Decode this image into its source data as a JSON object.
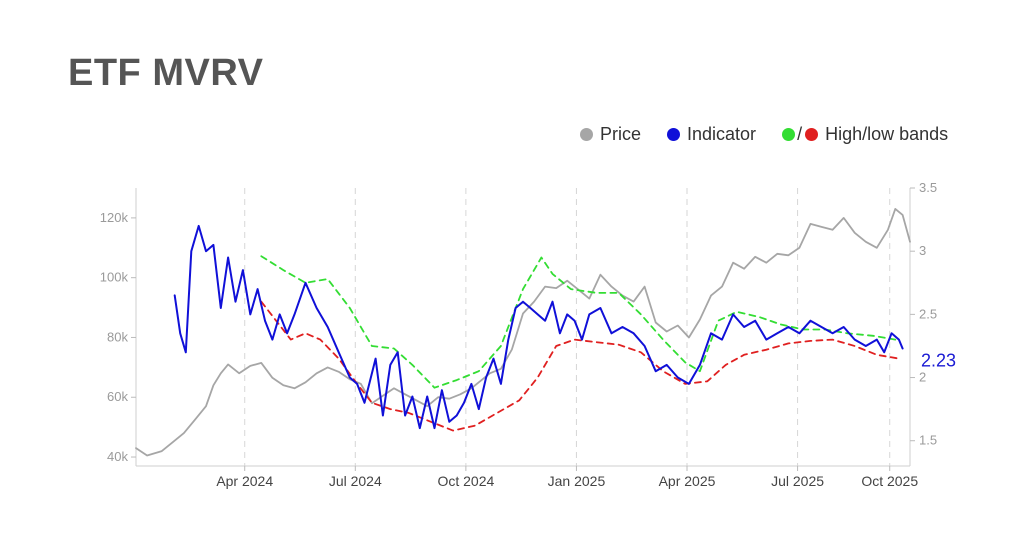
{
  "title": "ETF MVRV",
  "legend": {
    "price": "Price",
    "indicator": "Indicator",
    "bands": "High/low bands",
    "slash": "/"
  },
  "colors": {
    "price": "#a6a6a6",
    "indicator": "#1010d8",
    "high_band": "#33dd33",
    "low_band": "#e02020"
  },
  "chart_data": {
    "type": "line",
    "x_axis": {
      "range": [
        0,
        20
      ],
      "ticks": [
        {
          "x": 2.95,
          "label": "Apr 2024"
        },
        {
          "x": 5.95,
          "label": "Jul 2024"
        },
        {
          "x": 8.95,
          "label": "Oct 2024"
        },
        {
          "x": 11.95,
          "label": "Jan 2025"
        },
        {
          "x": 14.95,
          "label": "Apr 2025"
        },
        {
          "x": 17.95,
          "label": "Jul 2025"
        },
        {
          "x": 20.45,
          "label": "Oct 2025"
        }
      ]
    },
    "y_left": {
      "range": [
        37000,
        130000
      ],
      "ticks": [
        {
          "v": 40000,
          "label": "40k"
        },
        {
          "v": 60000,
          "label": "60k"
        },
        {
          "v": 80000,
          "label": "80k"
        },
        {
          "v": 100000,
          "label": "100k"
        },
        {
          "v": 120000,
          "label": "120k"
        }
      ]
    },
    "y_right": {
      "range": [
        1.3,
        3.5
      ],
      "ticks": [
        {
          "v": 1.5,
          "label": "1.5"
        },
        {
          "v": 2,
          "label": "2"
        },
        {
          "v": 2.5,
          "label": "2.5"
        },
        {
          "v": 3,
          "label": "3"
        },
        {
          "v": 3.5,
          "label": "3.5"
        }
      ]
    },
    "last_value_label": "2.23",
    "series": [
      {
        "name": "Price",
        "axis": "left",
        "points": [
          [
            0,
            43000
          ],
          [
            0.3,
            40500
          ],
          [
            0.7,
            42000
          ],
          [
            1.0,
            45000
          ],
          [
            1.3,
            48000
          ],
          [
            1.6,
            52500
          ],
          [
            1.9,
            57000
          ],
          [
            2.1,
            64000
          ],
          [
            2.3,
            68000
          ],
          [
            2.5,
            71000
          ],
          [
            2.8,
            68000
          ],
          [
            3.1,
            70500
          ],
          [
            3.4,
            71500
          ],
          [
            3.7,
            66500
          ],
          [
            4.0,
            64000
          ],
          [
            4.3,
            63000
          ],
          [
            4.6,
            65000
          ],
          [
            4.9,
            68000
          ],
          [
            5.2,
            70000
          ],
          [
            5.5,
            68500
          ],
          [
            5.8,
            66000
          ],
          [
            6.1,
            64500
          ],
          [
            6.4,
            58000
          ],
          [
            6.7,
            60500
          ],
          [
            7.0,
            63000
          ],
          [
            7.3,
            61000
          ],
          [
            7.6,
            59000
          ],
          [
            7.9,
            57000
          ],
          [
            8.2,
            60000
          ],
          [
            8.5,
            59500
          ],
          [
            8.8,
            61000
          ],
          [
            9.1,
            63000
          ],
          [
            9.4,
            66000
          ],
          [
            9.6,
            68000
          ],
          [
            9.9,
            69500
          ],
          [
            10.2,
            76000
          ],
          [
            10.5,
            88000
          ],
          [
            10.8,
            92000
          ],
          [
            11.1,
            97000
          ],
          [
            11.4,
            96500
          ],
          [
            11.7,
            99000
          ],
          [
            12.0,
            96000
          ],
          [
            12.3,
            93000
          ],
          [
            12.6,
            101000
          ],
          [
            12.9,
            97000
          ],
          [
            13.2,
            94000
          ],
          [
            13.5,
            92000
          ],
          [
            13.8,
            97000
          ],
          [
            14.1,
            85000
          ],
          [
            14.4,
            82000
          ],
          [
            14.7,
            84000
          ],
          [
            15.0,
            80000
          ],
          [
            15.3,
            86000
          ],
          [
            15.6,
            94000
          ],
          [
            15.9,
            97000
          ],
          [
            16.2,
            105000
          ],
          [
            16.5,
            103000
          ],
          [
            16.8,
            107000
          ],
          [
            17.1,
            105000
          ],
          [
            17.4,
            108000
          ],
          [
            17.7,
            107500
          ],
          [
            18.0,
            110000
          ],
          [
            18.3,
            118000
          ],
          [
            18.6,
            117000
          ],
          [
            18.9,
            116000
          ],
          [
            19.2,
            120000
          ],
          [
            19.5,
            115000
          ],
          [
            19.8,
            112000
          ],
          [
            20.1,
            110000
          ],
          [
            20.4,
            116000
          ],
          [
            20.6,
            123000
          ],
          [
            20.8,
            121000
          ],
          [
            21.0,
            112000
          ]
        ]
      },
      {
        "name": "Indicator",
        "axis": "right",
        "points": [
          [
            1.05,
            2.65
          ],
          [
            1.2,
            2.35
          ],
          [
            1.35,
            2.2
          ],
          [
            1.5,
            3.0
          ],
          [
            1.7,
            3.2
          ],
          [
            1.9,
            3.0
          ],
          [
            2.1,
            3.05
          ],
          [
            2.3,
            2.55
          ],
          [
            2.5,
            2.95
          ],
          [
            2.7,
            2.6
          ],
          [
            2.9,
            2.85
          ],
          [
            3.1,
            2.5
          ],
          [
            3.3,
            2.7
          ],
          [
            3.5,
            2.45
          ],
          [
            3.7,
            2.3
          ],
          [
            3.9,
            2.5
          ],
          [
            4.1,
            2.35
          ],
          [
            4.3,
            2.5
          ],
          [
            4.6,
            2.75
          ],
          [
            4.9,
            2.55
          ],
          [
            5.2,
            2.4
          ],
          [
            5.5,
            2.2
          ],
          [
            5.8,
            2.0
          ],
          [
            6.0,
            1.95
          ],
          [
            6.2,
            1.8
          ],
          [
            6.5,
            2.15
          ],
          [
            6.7,
            1.7
          ],
          [
            6.9,
            2.1
          ],
          [
            7.1,
            2.2
          ],
          [
            7.3,
            1.7
          ],
          [
            7.5,
            1.85
          ],
          [
            7.7,
            1.6
          ],
          [
            7.9,
            1.85
          ],
          [
            8.1,
            1.6
          ],
          [
            8.3,
            1.9
          ],
          [
            8.5,
            1.65
          ],
          [
            8.7,
            1.7
          ],
          [
            8.9,
            1.8
          ],
          [
            9.1,
            1.95
          ],
          [
            9.3,
            1.75
          ],
          [
            9.5,
            2.0
          ],
          [
            9.7,
            2.15
          ],
          [
            9.9,
            1.95
          ],
          [
            10.1,
            2.3
          ],
          [
            10.3,
            2.55
          ],
          [
            10.5,
            2.6
          ],
          [
            10.7,
            2.55
          ],
          [
            10.9,
            2.5
          ],
          [
            11.1,
            2.45
          ],
          [
            11.3,
            2.6
          ],
          [
            11.5,
            2.35
          ],
          [
            11.7,
            2.5
          ],
          [
            11.9,
            2.45
          ],
          [
            12.1,
            2.3
          ],
          [
            12.3,
            2.5
          ],
          [
            12.6,
            2.55
          ],
          [
            12.9,
            2.35
          ],
          [
            13.2,
            2.4
          ],
          [
            13.5,
            2.35
          ],
          [
            13.8,
            2.25
          ],
          [
            14.1,
            2.05
          ],
          [
            14.4,
            2.1
          ],
          [
            14.7,
            2.0
          ],
          [
            15.0,
            1.95
          ],
          [
            15.3,
            2.1
          ],
          [
            15.6,
            2.35
          ],
          [
            15.9,
            2.3
          ],
          [
            16.2,
            2.5
          ],
          [
            16.5,
            2.4
          ],
          [
            16.8,
            2.45
          ],
          [
            17.1,
            2.3
          ],
          [
            17.4,
            2.35
          ],
          [
            17.7,
            2.4
          ],
          [
            18.0,
            2.35
          ],
          [
            18.3,
            2.45
          ],
          [
            18.6,
            2.4
          ],
          [
            18.9,
            2.35
          ],
          [
            19.2,
            2.4
          ],
          [
            19.5,
            2.3
          ],
          [
            19.8,
            2.25
          ],
          [
            20.1,
            2.3
          ],
          [
            20.3,
            2.2
          ],
          [
            20.5,
            2.35
          ],
          [
            20.7,
            2.3
          ],
          [
            20.8,
            2.23
          ]
        ]
      },
      {
        "name": "High band",
        "axis": "right",
        "style": "dashed",
        "points": [
          [
            3.4,
            2.96
          ],
          [
            4.0,
            2.85
          ],
          [
            4.6,
            2.75
          ],
          [
            5.2,
            2.78
          ],
          [
            5.8,
            2.55
          ],
          [
            6.4,
            2.25
          ],
          [
            7.0,
            2.23
          ],
          [
            7.5,
            2.1
          ],
          [
            8.1,
            1.92
          ],
          [
            8.7,
            1.98
          ],
          [
            9.3,
            2.05
          ],
          [
            9.9,
            2.25
          ],
          [
            10.5,
            2.7
          ],
          [
            11.0,
            2.95
          ],
          [
            11.3,
            2.82
          ],
          [
            11.8,
            2.7
          ],
          [
            12.5,
            2.67
          ],
          [
            13.1,
            2.67
          ],
          [
            13.7,
            2.5
          ],
          [
            14.3,
            2.3
          ],
          [
            14.9,
            2.12
          ],
          [
            15.3,
            2.05
          ],
          [
            15.8,
            2.45
          ],
          [
            16.3,
            2.52
          ],
          [
            16.9,
            2.48
          ],
          [
            17.5,
            2.42
          ],
          [
            18.1,
            2.38
          ],
          [
            18.7,
            2.38
          ],
          [
            19.3,
            2.35
          ],
          [
            20.0,
            2.33
          ],
          [
            20.6,
            2.3
          ]
        ]
      },
      {
        "name": "Low band",
        "axis": "right",
        "style": "dashed",
        "points": [
          [
            3.4,
            2.6
          ],
          [
            3.8,
            2.45
          ],
          [
            4.2,
            2.3
          ],
          [
            4.6,
            2.35
          ],
          [
            5.0,
            2.3
          ],
          [
            5.5,
            2.15
          ],
          [
            6.0,
            1.95
          ],
          [
            6.4,
            1.8
          ],
          [
            6.9,
            1.75
          ],
          [
            7.4,
            1.72
          ],
          [
            8.0,
            1.65
          ],
          [
            8.6,
            1.58
          ],
          [
            9.2,
            1.62
          ],
          [
            9.8,
            1.72
          ],
          [
            10.4,
            1.82
          ],
          [
            10.9,
            2.0
          ],
          [
            11.4,
            2.25
          ],
          [
            11.9,
            2.3
          ],
          [
            12.5,
            2.28
          ],
          [
            13.1,
            2.26
          ],
          [
            13.7,
            2.2
          ],
          [
            14.3,
            2.05
          ],
          [
            14.9,
            1.95
          ],
          [
            15.5,
            1.97
          ],
          [
            16.0,
            2.1
          ],
          [
            16.5,
            2.18
          ],
          [
            17.1,
            2.22
          ],
          [
            17.7,
            2.27
          ],
          [
            18.3,
            2.29
          ],
          [
            18.9,
            2.3
          ],
          [
            19.5,
            2.25
          ],
          [
            20.1,
            2.18
          ],
          [
            20.7,
            2.15
          ]
        ]
      }
    ]
  }
}
